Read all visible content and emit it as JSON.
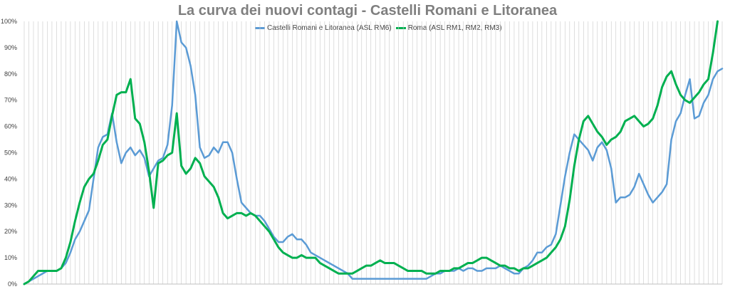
{
  "chart_data": {
    "type": "line",
    "title": "La curva dei nuovi contagi - Castelli Romani e Litoranea",
    "xlabel": "",
    "ylabel": "",
    "ylim": [
      0,
      100
    ],
    "yticks": [
      "0%",
      "10%",
      "20%",
      "30%",
      "40%",
      "50%",
      "60%",
      "70%",
      "80%",
      "90%",
      "100%"
    ],
    "grid": "vertical lines per data point",
    "legend_position": "top",
    "series": [
      {
        "name": "Castelli Romani e Litoranea (ASL RM6)",
        "color": "#5b9bd5",
        "values": [
          0,
          1,
          2,
          3,
          4,
          5,
          5,
          5,
          6,
          8,
          12,
          17,
          20,
          24,
          28,
          40,
          52,
          56,
          57,
          65,
          54,
          46,
          50,
          52,
          49,
          51,
          48,
          41,
          44,
          47,
          48,
          53,
          68,
          100,
          92,
          90,
          83,
          72,
          52,
          48,
          49,
          52,
          50,
          54,
          54,
          50,
          40,
          31,
          29,
          27,
          26,
          26,
          24,
          21,
          18,
          16,
          16,
          18,
          19,
          17,
          17,
          15,
          12,
          11,
          10,
          9,
          8,
          7,
          6,
          5,
          4,
          2,
          2,
          2,
          2,
          2,
          2,
          2,
          2,
          2,
          2,
          2,
          2,
          2,
          2,
          2,
          2,
          2,
          3,
          4,
          4,
          5,
          5,
          5,
          6,
          5,
          6,
          6,
          5,
          5,
          6,
          6,
          6,
          7,
          6,
          5,
          4,
          4,
          6,
          7,
          9,
          12,
          12,
          14,
          15,
          19,
          30,
          41,
          50,
          57,
          55,
          53,
          51,
          47,
          52,
          54,
          51,
          44,
          31,
          33,
          33,
          34,
          37,
          42,
          38,
          34,
          31,
          33,
          35,
          38,
          55,
          62,
          65,
          72,
          78,
          63,
          64,
          69,
          72,
          78,
          81,
          82
        ]
      },
      {
        "name": "Roma (ASL RM1, RM2, RM3)",
        "color": "#00b050",
        "values": [
          0,
          1,
          3,
          5,
          5,
          5,
          5,
          5,
          6,
          10,
          16,
          24,
          31,
          37,
          40,
          42,
          47,
          53,
          55,
          64,
          72,
          73,
          73,
          78,
          63,
          61,
          54,
          43,
          29,
          46,
          47,
          49,
          50,
          65,
          45,
          42,
          44,
          48,
          46,
          41,
          39,
          37,
          33,
          27,
          25,
          26,
          27,
          27,
          26,
          27,
          26,
          24,
          22,
          20,
          17,
          14,
          12,
          11,
          10,
          10,
          11,
          10,
          10,
          10,
          8,
          7,
          6,
          5,
          4,
          4,
          4,
          4,
          5,
          6,
          7,
          7,
          8,
          9,
          8,
          8,
          8,
          7,
          6,
          5,
          5,
          5,
          5,
          4,
          4,
          4,
          5,
          5,
          5,
          6,
          6,
          7,
          8,
          8,
          9,
          10,
          10,
          9,
          8,
          7,
          7,
          6,
          6,
          5,
          6,
          6,
          7,
          8,
          9,
          10,
          12,
          14,
          17,
          22,
          32,
          45,
          55,
          62,
          64,
          61,
          58,
          56,
          53,
          55,
          56,
          58,
          62,
          63,
          64,
          62,
          60,
          61,
          63,
          68,
          75,
          79,
          81,
          76,
          72,
          70,
          69,
          71,
          73,
          76,
          78,
          88,
          100
        ]
      }
    ]
  }
}
